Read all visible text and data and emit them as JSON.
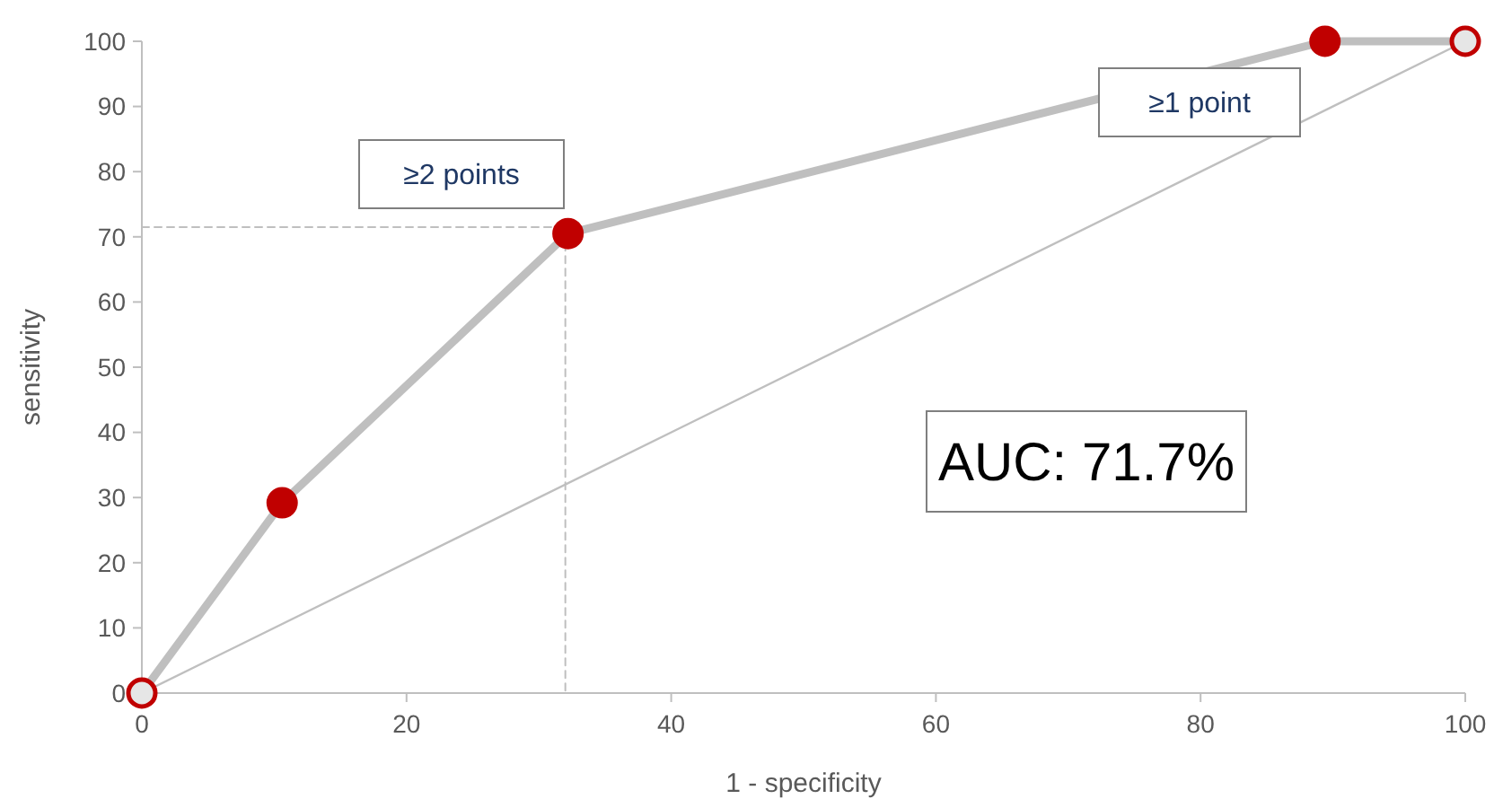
{
  "chart_data": {
    "type": "line",
    "xlabel": "1 - specificity",
    "ylabel": "sensitivity",
    "xlim": [
      0,
      100
    ],
    "xticks": [
      0,
      20,
      40,
      60,
      80,
      100
    ],
    "ylim": [
      0,
      100
    ],
    "yticks": [
      0,
      10,
      20,
      30,
      40,
      50,
      60,
      70,
      80,
      90,
      100
    ],
    "grid": false,
    "series": [
      {
        "color": "#bfbfbf",
        "x": [
          0,
          32,
          32
        ],
        "values": [
          71.5,
          71.5,
          0
        ],
        "line_style": "dashed",
        "marker": "none"
      },
      {
        "color": "#bfbfbf",
        "x": [
          0,
          100
        ],
        "values": [
          0,
          100
        ],
        "line_style": "solid",
        "marker": "none"
      },
      {
        "color": "#bfbfbf",
        "x": [
          0,
          10.6,
          32.2,
          89.4,
          100
        ],
        "values": [
          0,
          29.2,
          70.5,
          100,
          100
        ],
        "line_style": "solid",
        "marker": "circle",
        "colors": [
          "#e6e6e6",
          "#c00000",
          "#c00000",
          "#c00000",
          "#e6e6e6"
        ]
      }
    ],
    "annotations": [
      "≥2 points",
      "≥1 point",
      "AUC: 71.7%"
    ]
  }
}
